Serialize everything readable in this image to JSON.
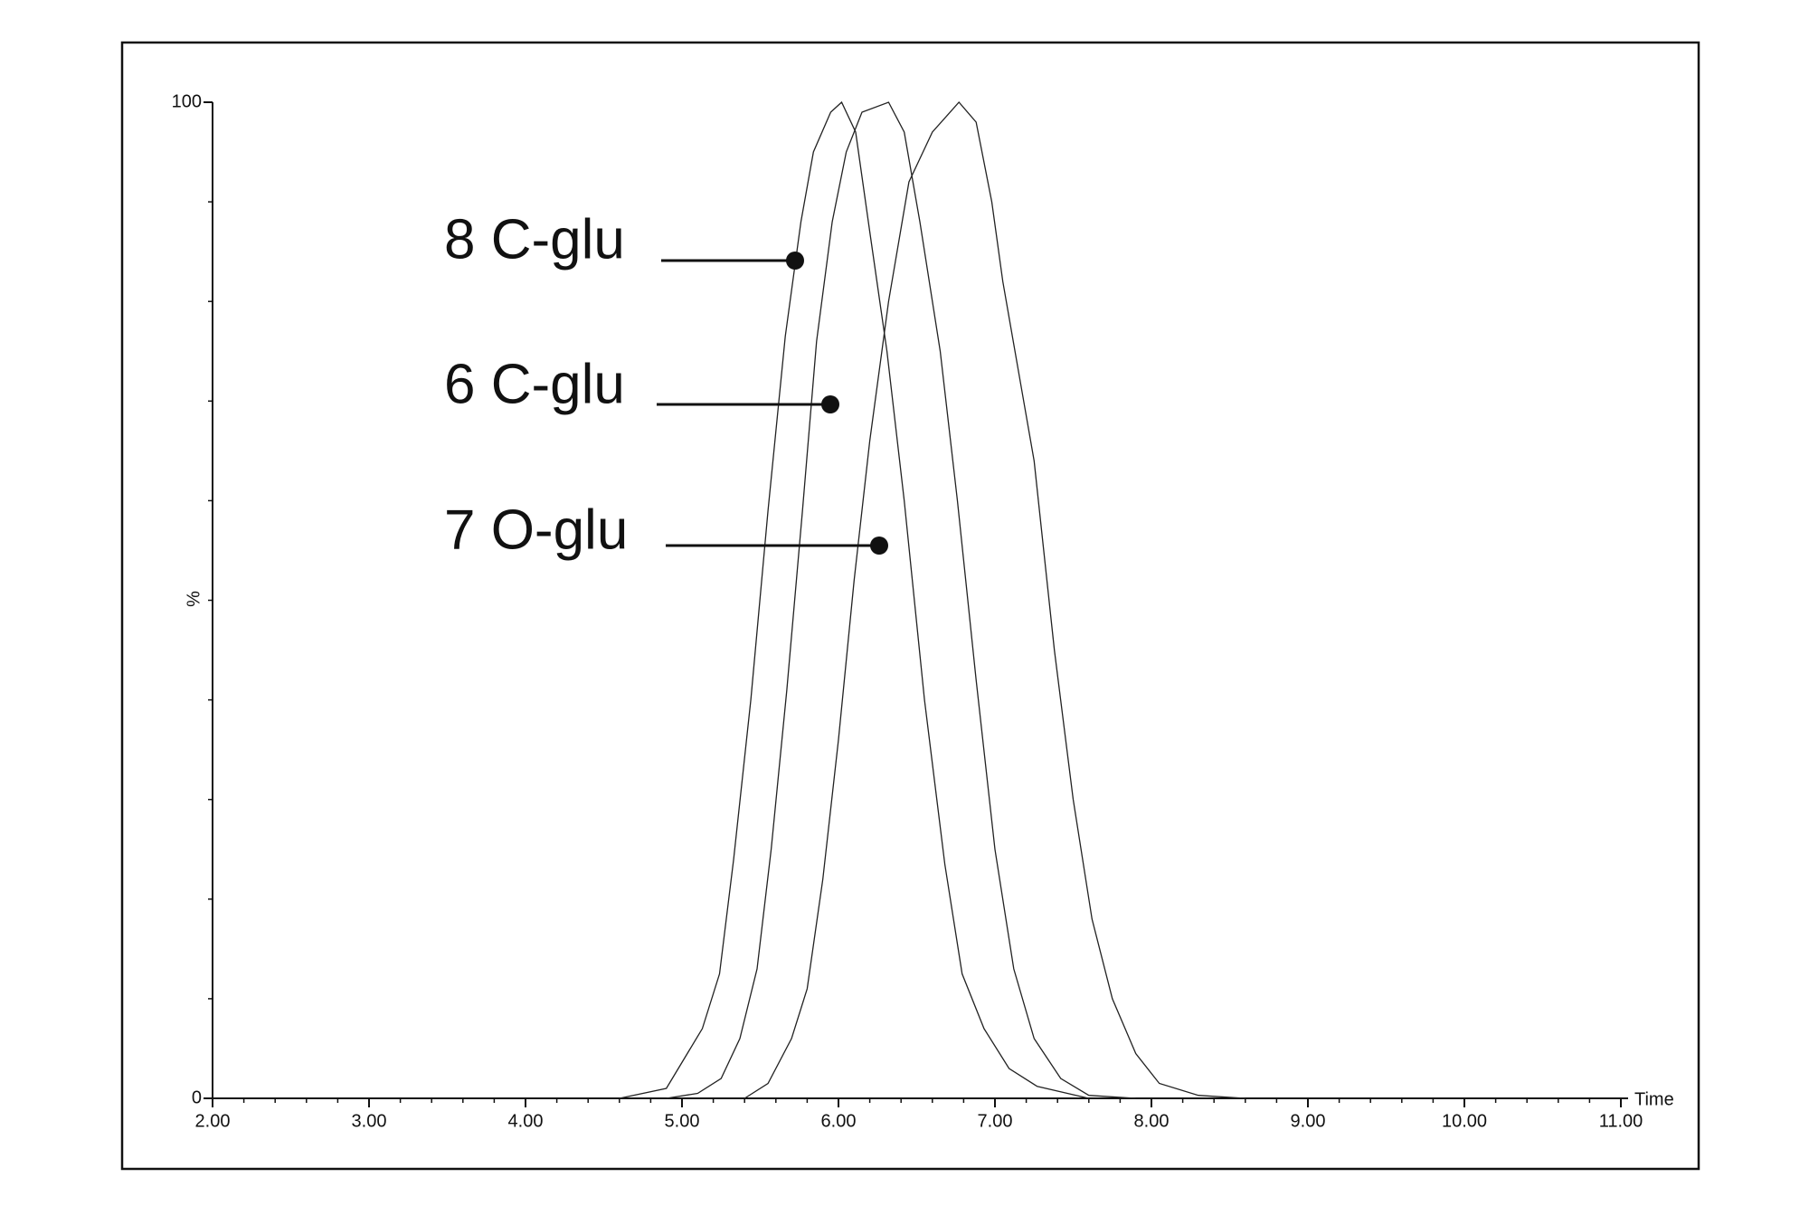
{
  "chart_data": {
    "type": "line",
    "xlabel": "Time",
    "ylabel": "%",
    "xlim": [
      2,
      11
    ],
    "ylim": [
      0,
      100
    ],
    "xticks": [
      {
        "value": 2,
        "label": "2.00"
      },
      {
        "value": 3,
        "label": "3.00"
      },
      {
        "value": 4,
        "label": "4.00"
      },
      {
        "value": 5,
        "label": "5.00"
      },
      {
        "value": 6,
        "label": "6.00"
      },
      {
        "value": 7,
        "label": "7.00"
      },
      {
        "value": 8,
        "label": "8.00"
      },
      {
        "value": 9,
        "label": "9.00"
      },
      {
        "value": 10,
        "label": "10.00"
      },
      {
        "value": 11,
        "label": "11.00"
      }
    ],
    "yticks": [
      0,
      100
    ],
    "series": [
      {
        "name": "8 C-glu",
        "color": "#222222",
        "x": [
          4.6,
          4.9,
          5.13,
          5.24,
          5.33,
          5.44,
          5.55,
          5.66,
          5.76,
          5.84,
          5.95,
          6.02,
          6.11,
          6.2,
          6.31,
          6.42,
          6.55,
          6.68,
          6.79,
          6.93,
          7.09,
          7.27,
          7.6
        ],
        "values": [
          0,
          1,
          7,
          12.5,
          24,
          40,
          59,
          76.5,
          88,
          95,
          99,
          100,
          97,
          87,
          75,
          60,
          40,
          23.5,
          12.5,
          7,
          3,
          1.2,
          0
        ]
      },
      {
        "name": "6 C-glu",
        "color": "#222222",
        "x": [
          4.9,
          5.1,
          5.25,
          5.37,
          5.48,
          5.57,
          5.67,
          5.77,
          5.86,
          5.96,
          6.05,
          6.15,
          6.32,
          6.42,
          6.52,
          6.65,
          6.76,
          6.88,
          7.0,
          7.12,
          7.25,
          7.42,
          7.6,
          7.9
        ],
        "values": [
          0,
          0.5,
          2,
          6,
          13,
          25,
          41,
          59,
          76,
          88,
          95,
          99,
          100,
          97,
          88,
          75,
          60,
          42,
          25,
          13,
          6,
          2,
          0.3,
          0
        ]
      },
      {
        "name": "7 O-glu",
        "color": "#222222",
        "x": [
          5.4,
          5.55,
          5.7,
          5.8,
          5.9,
          6.0,
          6.1,
          6.2,
          6.32,
          6.45,
          6.6,
          6.77,
          6.88,
          6.98,
          7.05,
          7.15,
          7.25,
          7.38,
          7.5,
          7.62,
          7.75,
          7.9,
          8.05,
          8.3,
          8.6
        ],
        "values": [
          0,
          1.5,
          6,
          11,
          22,
          36,
          52,
          66,
          80,
          92,
          97,
          100,
          98,
          90,
          82,
          73,
          64,
          45,
          30,
          18,
          10,
          4.5,
          1.5,
          0.3,
          0
        ]
      }
    ]
  }
}
